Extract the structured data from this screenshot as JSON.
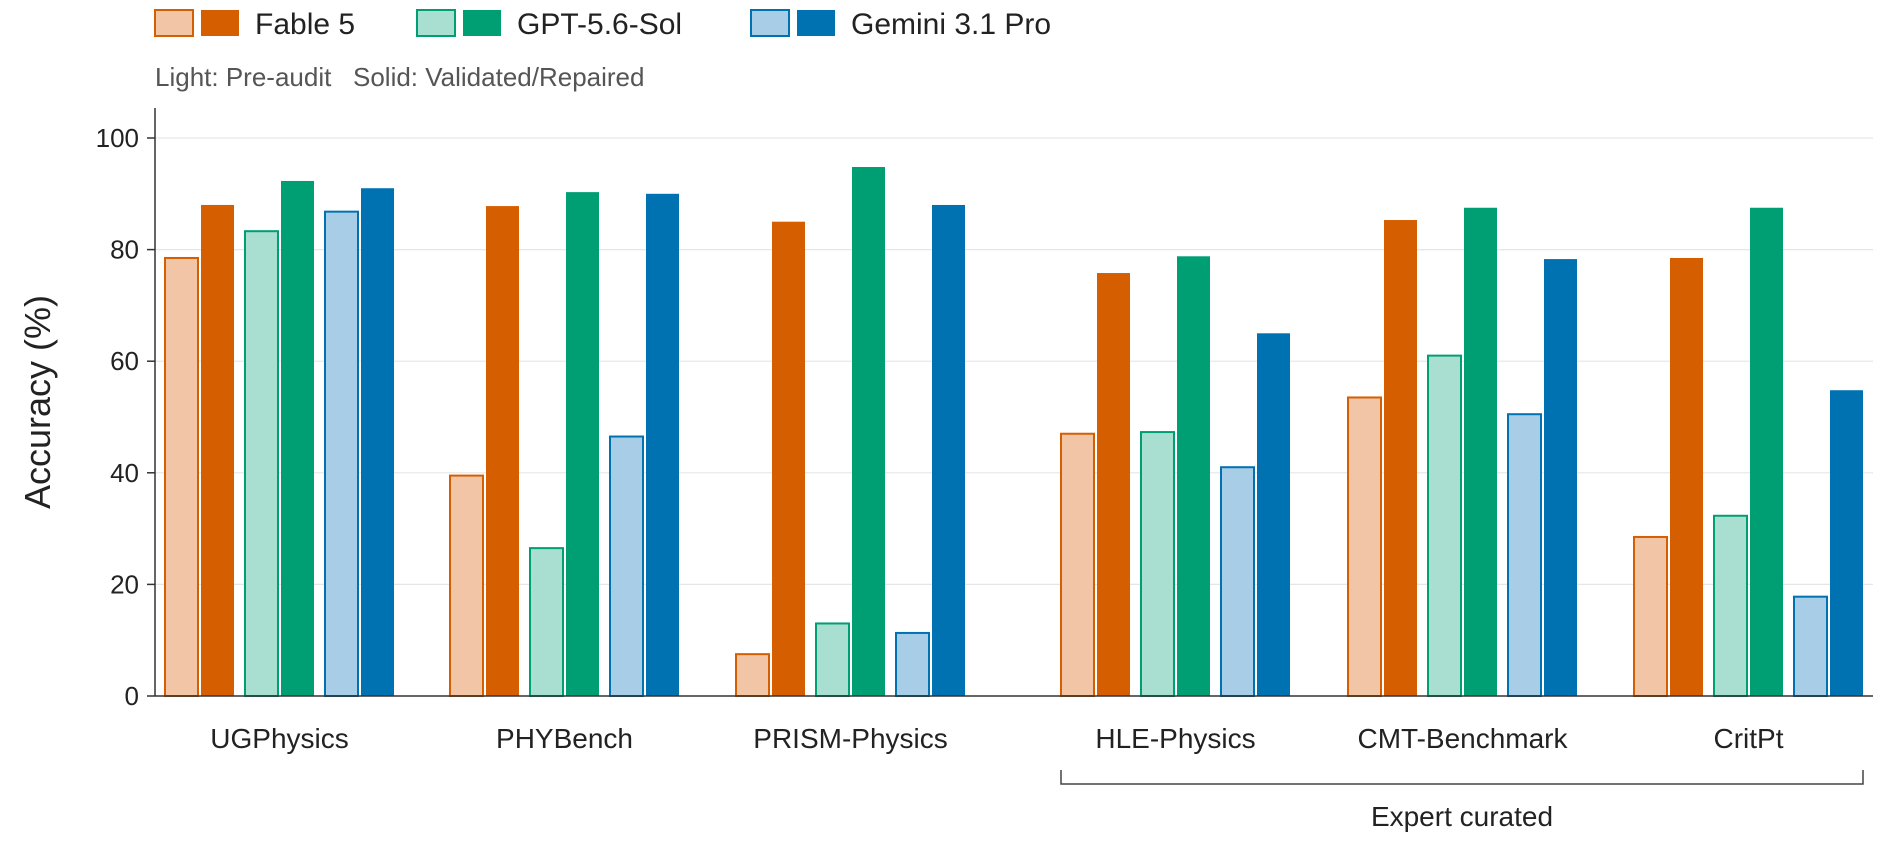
{
  "chart_data": {
    "type": "bar",
    "title": "",
    "xlabel": "",
    "ylabel": "Accuracy (%)",
    "ylim": [
      0,
      100
    ],
    "yticks": [
      0,
      20,
      40,
      60,
      80,
      100
    ],
    "grid": true,
    "legend_position": "top-left",
    "legend_note": "Light: Pre-audit   Solid: Validated/Repaired",
    "categories": [
      "UGPhysics",
      "PHYBench",
      "PRISM-Physics",
      "HLE-Physics",
      "CMT-Benchmark",
      "CritPt"
    ],
    "group_annotation": {
      "label": "Expert curated",
      "categories": [
        "HLE-Physics",
        "CMT-Benchmark",
        "CritPt"
      ]
    },
    "series": [
      {
        "name": "Fable 5",
        "variant": "Pre-audit",
        "color": "#D55E00",
        "fill": "#F1C5A5",
        "values": [
          78.5,
          39.5,
          7.5,
          47.0,
          53.5,
          28.5
        ]
      },
      {
        "name": "Fable 5",
        "variant": "Validated/Repaired",
        "color": "#D55E00",
        "fill": "#D55E00",
        "values": [
          88.0,
          87.8,
          85.0,
          75.8,
          85.3,
          78.5
        ]
      },
      {
        "name": "GPT-5.6-Sol",
        "variant": "Pre-audit",
        "color": "#009E73",
        "fill": "#A8DFD0",
        "values": [
          83.3,
          26.5,
          13.0,
          47.3,
          61.0,
          32.3
        ]
      },
      {
        "name": "GPT-5.6-Sol",
        "variant": "Validated/Repaired",
        "color": "#009E73",
        "fill": "#009E73",
        "values": [
          92.3,
          90.3,
          94.8,
          78.8,
          87.5,
          87.5
        ]
      },
      {
        "name": "Gemini 3.1 Pro",
        "variant": "Pre-audit",
        "color": "#0072B2",
        "fill": "#A8CDE6",
        "values": [
          86.8,
          46.5,
          11.3,
          41.0,
          50.5,
          17.8
        ]
      },
      {
        "name": "Gemini 3.1 Pro",
        "variant": "Validated/Repaired",
        "color": "#0072B2",
        "fill": "#0072B2",
        "values": [
          91.0,
          90.0,
          88.0,
          65.0,
          78.3,
          54.8
        ]
      }
    ],
    "legend": [
      {
        "name": "Fable 5",
        "color": "#D55E00",
        "light": "#F1C5A5"
      },
      {
        "name": "GPT-5.6-Sol",
        "color": "#009E73",
        "light": "#A8DFD0"
      },
      {
        "name": "Gemini 3.1 Pro",
        "color": "#0072B2",
        "light": "#A8CDE6"
      }
    ]
  }
}
